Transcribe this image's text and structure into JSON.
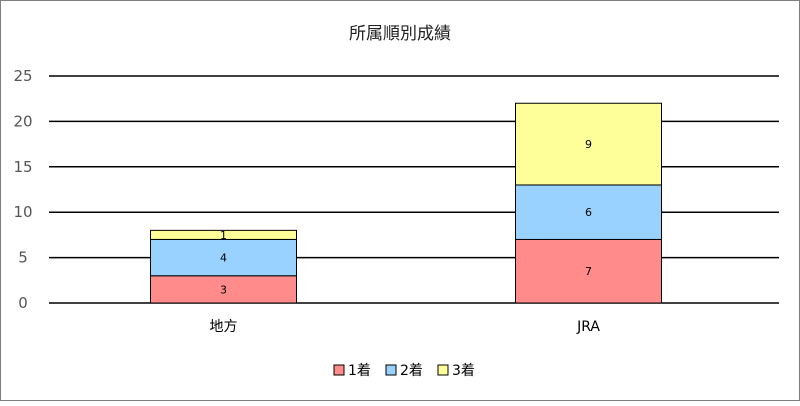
{
  "chart_data": {
    "type": "bar",
    "stacked": true,
    "title": "所属順別成績",
    "xlabel": "",
    "ylabel": "",
    "categories": [
      "地方",
      "JRA"
    ],
    "series": [
      {
        "name": "1着",
        "values": [
          3,
          7
        ],
        "color": "#ff8b8b"
      },
      {
        "name": "2着",
        "values": [
          4,
          6
        ],
        "color": "#99d2ff"
      },
      {
        "name": "3着",
        "values": [
          1,
          9
        ],
        "color": "#ffff99"
      }
    ],
    "ylim": [
      0,
      25
    ],
    "yticks": [
      0,
      5,
      10,
      15,
      20,
      25
    ],
    "grid": true,
    "legend": "bottom"
  }
}
